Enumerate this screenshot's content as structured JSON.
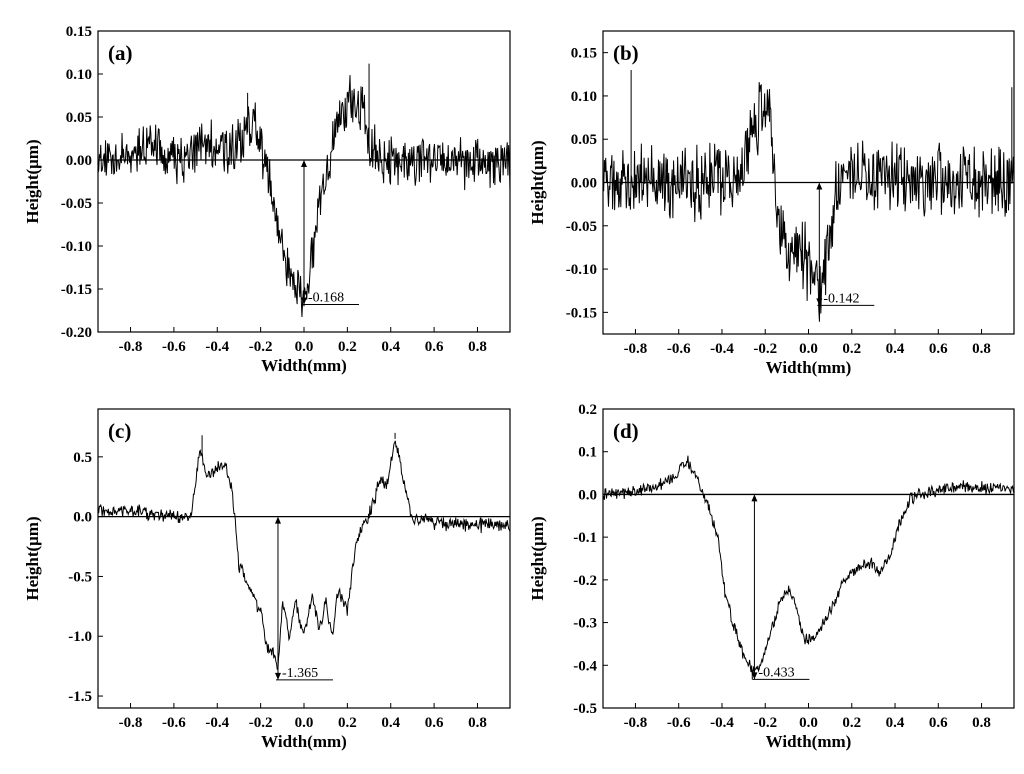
{
  "chart_data": [
    {
      "type": "line",
      "panel_label": "(a)",
      "xlabel": "Width(mm)",
      "ylabel": "Height(μm)",
      "xlim": [
        -0.95,
        0.95
      ],
      "ylim": [
        -0.2,
        0.15
      ],
      "xticks": [
        -0.8,
        -0.6,
        -0.4,
        -0.2,
        0.0,
        0.2,
        0.4,
        0.6,
        0.8
      ],
      "xtick_labels": [
        "-0.8",
        "-0.6",
        "-0.4",
        "-0.2",
        "0.0",
        "0.2",
        "0.4",
        "0.6",
        "0.8"
      ],
      "yticks": [
        0.15,
        0.1,
        0.05,
        0.0,
        -0.05,
        -0.1,
        -0.15,
        -0.2
      ],
      "ytick_labels": [
        "0.15",
        "0.10",
        "0.05",
        "0.00",
        "-0.05",
        "-0.10",
        "-0.15",
        "-0.20"
      ],
      "baseline_y": 0,
      "noise_amplitude": 0.025,
      "profile": [
        [
          -0.95,
          0.0
        ],
        [
          -0.8,
          0.0
        ],
        [
          -0.7,
          0.02
        ],
        [
          -0.55,
          0.0
        ],
        [
          -0.45,
          0.02
        ],
        [
          -0.35,
          0.01
        ],
        [
          -0.28,
          0.02
        ],
        [
          -0.23,
          0.05
        ],
        [
          -0.18,
          0.0
        ],
        [
          -0.12,
          -0.08
        ],
        [
          -0.07,
          -0.13
        ],
        [
          -0.03,
          -0.15
        ],
        [
          0.0,
          -0.165
        ],
        [
          0.03,
          -0.12
        ],
        [
          0.06,
          -0.07
        ],
        [
          0.1,
          -0.02
        ],
        [
          0.15,
          0.04
        ],
        [
          0.2,
          0.07
        ],
        [
          0.27,
          0.06
        ],
        [
          0.3,
          0.02
        ],
        [
          0.35,
          0.0
        ],
        [
          0.5,
          0.0
        ],
        [
          0.7,
          0.0
        ],
        [
          0.95,
          -0.01
        ]
      ],
      "spikes": [
        [
          -0.96,
          -0.06
        ],
        [
          -0.26,
          0.078
        ],
        [
          0.3,
          0.112
        ],
        [
          0.27,
          0.085
        ]
      ],
      "annotation": {
        "x": 0.0,
        "y": -0.168,
        "text": "-0.168"
      }
    },
    {
      "type": "line",
      "panel_label": "(b)",
      "xlabel": "Width(mm)",
      "ylabel": "Height(μm)",
      "xlim": [
        -0.95,
        0.95
      ],
      "ylim": [
        -0.175,
        0.175
      ],
      "xticks": [
        -0.8,
        -0.6,
        -0.4,
        -0.2,
        0.0,
        0.2,
        0.4,
        0.6,
        0.8
      ],
      "xtick_labels": [
        "-0.8",
        "-0.6",
        "-0.4",
        "-0.2",
        "0.0",
        "0.2",
        "0.4",
        "0.6",
        "0.8"
      ],
      "yticks": [
        0.15,
        0.1,
        0.05,
        0.0,
        -0.05,
        -0.1,
        -0.15
      ],
      "ytick_labels": [
        "0.15",
        "0.10",
        "0.05",
        "0.00",
        "-0.05",
        "-0.10",
        "-0.15"
      ],
      "baseline_y": 0,
      "noise_amplitude": 0.035,
      "profile": [
        [
          -0.95,
          0.0
        ],
        [
          -0.7,
          0.0
        ],
        [
          -0.5,
          0.0
        ],
        [
          -0.3,
          0.01
        ],
        [
          -0.25,
          0.06
        ],
        [
          -0.2,
          0.09
        ],
        [
          -0.17,
          0.06
        ],
        [
          -0.14,
          -0.04
        ],
        [
          -0.1,
          -0.08
        ],
        [
          -0.05,
          -0.08
        ],
        [
          0.0,
          -0.09
        ],
        [
          0.03,
          -0.11
        ],
        [
          0.06,
          -0.12
        ],
        [
          0.1,
          -0.06
        ],
        [
          0.13,
          0.0
        ],
        [
          0.3,
          0.01
        ],
        [
          0.5,
          0.0
        ],
        [
          0.7,
          0.0
        ],
        [
          0.95,
          0.0
        ]
      ],
      "spikes": [
        [
          -0.82,
          0.13
        ],
        [
          -0.18,
          0.108
        ],
        [
          -0.96,
          -0.07
        ],
        [
          0.94,
          0.11
        ]
      ],
      "annotation": {
        "x": 0.05,
        "y": -0.142,
        "text": "-0.142"
      }
    },
    {
      "type": "line",
      "panel_label": "(c)",
      "xlabel": "Width(mm)",
      "ylabel": "Height(μm)",
      "xlim": [
        -0.95,
        0.95
      ],
      "ylim": [
        -1.6,
        0.9
      ],
      "xticks": [
        -0.8,
        -0.6,
        -0.4,
        -0.2,
        0.0,
        0.2,
        0.4,
        0.6,
        0.8
      ],
      "xtick_labels": [
        "-0.8",
        "-0.6",
        "-0.4",
        "-0.2",
        "0.0",
        "0.2",
        "0.4",
        "0.6",
        "0.8"
      ],
      "yticks": [
        0.5,
        0.0,
        -0.5,
        -1.0,
        -1.5
      ],
      "ytick_labels": [
        "0.5",
        "0.0",
        "-0.5",
        "-1.0",
        "-1.5"
      ],
      "baseline_y": 0,
      "noise_amplitude": 0.05,
      "profile": [
        [
          -0.95,
          0.05
        ],
        [
          -0.8,
          0.05
        ],
        [
          -0.6,
          0.0
        ],
        [
          -0.52,
          0.0
        ],
        [
          -0.48,
          0.6
        ],
        [
          -0.45,
          0.35
        ],
        [
          -0.4,
          0.4
        ],
        [
          -0.36,
          0.45
        ],
        [
          -0.33,
          0.2
        ],
        [
          -0.3,
          -0.4
        ],
        [
          -0.26,
          -0.55
        ],
        [
          -0.2,
          -0.8
        ],
        [
          -0.17,
          -1.1
        ],
        [
          -0.14,
          -1.15
        ],
        [
          -0.12,
          -1.3
        ],
        [
          -0.1,
          -0.7
        ],
        [
          -0.07,
          -1.0
        ],
        [
          -0.04,
          -0.7
        ],
        [
          0.0,
          -1.0
        ],
        [
          0.04,
          -0.65
        ],
        [
          0.07,
          -0.95
        ],
        [
          0.1,
          -0.7
        ],
        [
          0.13,
          -1.0
        ],
        [
          0.16,
          -0.6
        ],
        [
          0.2,
          -0.8
        ],
        [
          0.24,
          -0.2
        ],
        [
          0.3,
          0.0
        ],
        [
          0.35,
          0.3
        ],
        [
          0.38,
          0.25
        ],
        [
          0.42,
          0.65
        ],
        [
          0.46,
          0.3
        ],
        [
          0.5,
          0.0
        ],
        [
          0.6,
          -0.05
        ],
        [
          0.8,
          -0.07
        ],
        [
          0.95,
          -0.08
        ]
      ],
      "spikes": [
        [
          -0.47,
          0.68
        ],
        [
          0.42,
          0.7
        ],
        [
          -0.12,
          -1.365
        ]
      ],
      "annotation": {
        "x": -0.12,
        "y": -1.365,
        "text": "-1.365"
      }
    },
    {
      "type": "line",
      "panel_label": "(d)",
      "xlabel": "Width(mm)",
      "ylabel": "Height(μm)",
      "xlim": [
        -0.95,
        0.95
      ],
      "ylim": [
        -0.5,
        0.2
      ],
      "xticks": [
        -0.8,
        -0.6,
        -0.4,
        -0.2,
        0.0,
        0.2,
        0.4,
        0.6,
        0.8
      ],
      "xtick_labels": [
        "-0.8",
        "-0.6",
        "-0.4",
        "-0.2",
        "0.0",
        "0.2",
        "0.4",
        "0.6",
        "0.8"
      ],
      "yticks": [
        0.2,
        0.1,
        0.0,
        -0.1,
        -0.2,
        -0.3,
        -0.4,
        -0.5
      ],
      "ytick_labels": [
        "0.2",
        "0.1",
        "0.0",
        "-0.1",
        "-0.2",
        "-0.3",
        "-0.4",
        "-0.5"
      ],
      "baseline_y": 0,
      "noise_amplitude": 0.012,
      "profile": [
        [
          -0.95,
          0.0
        ],
        [
          -0.75,
          0.01
        ],
        [
          -0.62,
          0.04
        ],
        [
          -0.56,
          0.08
        ],
        [
          -0.52,
          0.04
        ],
        [
          -0.47,
          -0.02
        ],
        [
          -0.42,
          -0.1
        ],
        [
          -0.38,
          -0.25
        ],
        [
          -0.33,
          -0.33
        ],
        [
          -0.3,
          -0.38
        ],
        [
          -0.26,
          -0.41
        ],
        [
          -0.22,
          -0.4
        ],
        [
          -0.18,
          -0.33
        ],
        [
          -0.13,
          -0.25
        ],
        [
          -0.09,
          -0.22
        ],
        [
          -0.05,
          -0.28
        ],
        [
          -0.02,
          -0.34
        ],
        [
          0.02,
          -0.34
        ],
        [
          0.07,
          -0.3
        ],
        [
          0.12,
          -0.25
        ],
        [
          0.16,
          -0.21
        ],
        [
          0.22,
          -0.17
        ],
        [
          0.28,
          -0.16
        ],
        [
          0.33,
          -0.18
        ],
        [
          0.37,
          -0.15
        ],
        [
          0.42,
          -0.07
        ],
        [
          0.47,
          -0.01
        ],
        [
          0.52,
          0.0
        ],
        [
          0.7,
          0.02
        ],
        [
          0.95,
          0.01
        ]
      ],
      "spikes": [
        [
          -0.26,
          -0.433
        ]
      ],
      "annotation": {
        "x": -0.25,
        "y": -0.433,
        "text": "-0.433"
      }
    }
  ]
}
